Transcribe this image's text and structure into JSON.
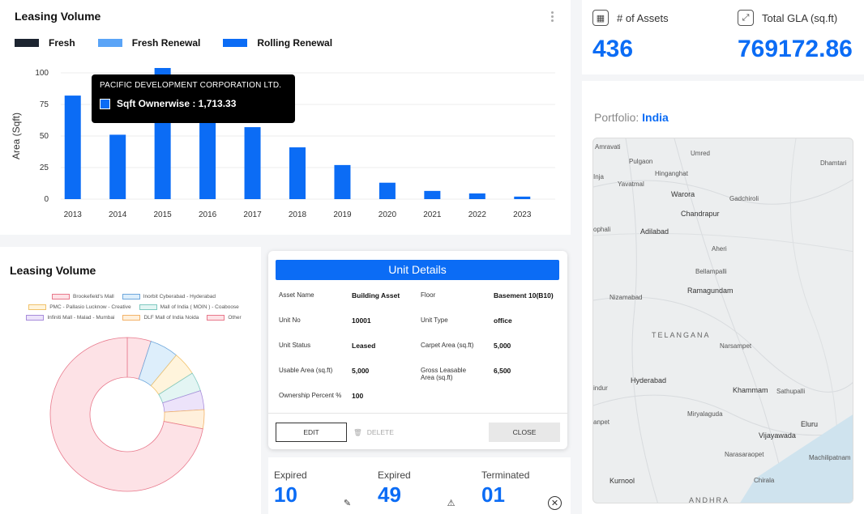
{
  "bar_card": {
    "title": "Leasing Volume",
    "legend": [
      {
        "label": "Fresh",
        "color": "#1c2430"
      },
      {
        "label": "Fresh Renewal",
        "color": "#5aa4f7"
      },
      {
        "label": "Rolling Renewal",
        "color": "#0b6cf5"
      }
    ],
    "tooltip": {
      "company": "PACIFIC DEVELOPMENT CORPORATION LTD.",
      "text": "Sqft Ownerwise : 1,713.33"
    }
  },
  "chart_data": [
    {
      "type": "bar",
      "categories": [
        "2013",
        "2014",
        "2015",
        "2016",
        "2017",
        "2018",
        "2019",
        "2020",
        "2021",
        "2022",
        "2023"
      ],
      "values": [
        82,
        51,
        104,
        70,
        57,
        41,
        27,
        13,
        6.5,
        4.5,
        2
      ],
      "title": "Leasing Volume",
      "xlabel": "",
      "ylabel": "Area (Sqft)",
      "ylim": [
        0,
        100
      ],
      "yticks": [
        0,
        25,
        50,
        75,
        100
      ],
      "color": "#0b6cf5",
      "grid": true,
      "legend": "top-left"
    },
    {
      "type": "pie",
      "title": "Leasing Volume",
      "categories": [
        "Brookefield's Mall",
        "Inorbit Cyberabad - Hyderabad",
        "PMC - Pallasio Lucknow - Creative",
        "Mall of India ( MOIN ) - Coaboose",
        "Infiniti Mall - Malad - Mumbai",
        "DLF Mall of India Noida",
        "Other"
      ],
      "values": [
        5,
        6,
        5,
        4,
        4,
        4,
        72
      ],
      "colors": [
        {
          "fill": "#fde2e6",
          "stroke": "#e8798c"
        },
        {
          "fill": "#ddeefb",
          "stroke": "#6fa8dc"
        },
        {
          "fill": "#fff4dc",
          "stroke": "#f1c26b"
        },
        {
          "fill": "#e3f5f3",
          "stroke": "#7fc9c0"
        },
        {
          "fill": "#ece3fa",
          "stroke": "#a88ddb"
        },
        {
          "fill": "#fff0dc",
          "stroke": "#f3b36a"
        },
        {
          "fill": "#fde2e6",
          "stroke": "#e8798c"
        }
      ],
      "legend": "top"
    }
  ],
  "kpis": [
    {
      "label": "# of Assets",
      "value": "436",
      "icon": "building-icon"
    },
    {
      "label": "Total GLA (sq.ft)",
      "value": "769172.86",
      "icon": "expand-icon"
    }
  ],
  "portfolio": {
    "label": "Portfolio:",
    "value": "India"
  },
  "map": {
    "cities": [
      "Amravati",
      "Umred",
      "Dhamtari",
      "Pulgaon",
      "Hinganghat",
      "Yavatmal",
      "Warora",
      "Gadchiroli",
      "Chandrapur",
      "Adilabad",
      "Aheri",
      "Bellampalli",
      "Ramagundam",
      "Nizamabad",
      "TELANGANA",
      "Narsampet",
      "Hyderabad",
      "Khammam",
      "Sathupalli",
      "Miryalaguda",
      "Eluru",
      "Vijayawada",
      "Narasaraopet",
      "Machilipatnam",
      "Kurnool",
      "Chirala",
      "ANDHRA",
      "Inja",
      "ophali",
      "indur",
      "anpet"
    ]
  },
  "donut_card": {
    "title": "Leasing Volume"
  },
  "unit": {
    "header": "Unit Details",
    "fields": [
      {
        "label": "Asset Name",
        "value": "Building Asset"
      },
      {
        "label": "Floor",
        "value": "Basement 10(B10)"
      },
      {
        "label": "Unit No",
        "value": "10001"
      },
      {
        "label": "Unit Type",
        "value": "office"
      },
      {
        "label": "Unit Status",
        "value": "Leased"
      },
      {
        "label": "Carpet Area (sq.ft)",
        "value": "5,000"
      },
      {
        "label": "Usable Area (sq.ft)",
        "value": "5,000"
      },
      {
        "label": "Gross Leasable Area (sq.ft)",
        "value": "6,500"
      },
      {
        "label": "Ownership Percent %",
        "value": "100"
      }
    ],
    "edit_label": "EDIT",
    "delete_label": "DELETE",
    "close_label": "CLOSE"
  },
  "stats": [
    {
      "label": "Expired",
      "value": "10",
      "icon": "document-edit-icon"
    },
    {
      "label": "Expired",
      "value": "49",
      "icon": "warning-icon"
    },
    {
      "label": "Terminated",
      "value": "01",
      "icon": "close-circle-icon"
    }
  ]
}
